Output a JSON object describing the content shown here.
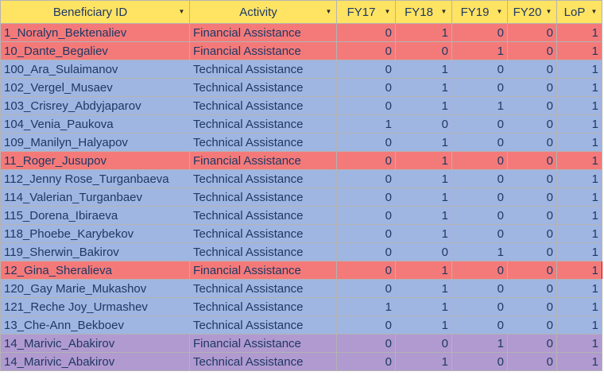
{
  "headers": [
    "Beneficiary ID",
    "Activity",
    "FY17",
    "FY18",
    "FY19",
    "FY20",
    "LoP"
  ],
  "filter_icon": "dropdown-arrow-icon",
  "colors": {
    "header": "#ffe363",
    "financial_row": "#f47a7a",
    "technical_row": "#9fb5e2",
    "duplicate_row": "#b09ad0"
  },
  "rows": [
    {
      "id": "1_Noralyn_Bektenaliev",
      "activity": "Financial Assistance",
      "fy17": "0",
      "fy18": "1",
      "fy19": "0",
      "fy20": "0",
      "lop": "1",
      "style": "fin"
    },
    {
      "id": "10_Dante_Begaliev",
      "activity": "Financial Assistance",
      "fy17": "0",
      "fy18": "0",
      "fy19": "1",
      "fy20": "0",
      "lop": "1",
      "style": "fin"
    },
    {
      "id": "100_Ara_Sulaimanov",
      "activity": "Technical Assistance",
      "fy17": "0",
      "fy18": "1",
      "fy19": "0",
      "fy20": "0",
      "lop": "1",
      "style": "tech"
    },
    {
      "id": "102_Vergel_Musaev",
      "activity": "Technical Assistance",
      "fy17": "0",
      "fy18": "1",
      "fy19": "0",
      "fy20": "0",
      "lop": "1",
      "style": "tech"
    },
    {
      "id": "103_Crisrey_Abdyjaparov",
      "activity": "Technical Assistance",
      "fy17": "0",
      "fy18": "1",
      "fy19": "1",
      "fy20": "0",
      "lop": "1",
      "style": "tech"
    },
    {
      "id": "104_Venia_Paukova",
      "activity": "Technical Assistance",
      "fy17": "1",
      "fy18": "0",
      "fy19": "0",
      "fy20": "0",
      "lop": "1",
      "style": "tech"
    },
    {
      "id": "109_Manilyn_Halyapov",
      "activity": "Technical Assistance",
      "fy17": "0",
      "fy18": "1",
      "fy19": "0",
      "fy20": "0",
      "lop": "1",
      "style": "tech"
    },
    {
      "id": "11_Roger_Jusupov",
      "activity": "Financial Assistance",
      "fy17": "0",
      "fy18": "1",
      "fy19": "0",
      "fy20": "0",
      "lop": "1",
      "style": "fin"
    },
    {
      "id": "112_Jenny Rose_Turganbaeva",
      "activity": "Technical Assistance",
      "fy17": "0",
      "fy18": "1",
      "fy19": "0",
      "fy20": "0",
      "lop": "1",
      "style": "tech"
    },
    {
      "id": "114_Valerian_Turganbaev",
      "activity": "Technical Assistance",
      "fy17": "0",
      "fy18": "1",
      "fy19": "0",
      "fy20": "0",
      "lop": "1",
      "style": "tech"
    },
    {
      "id": "115_Dorena_Ibiraeva",
      "activity": "Technical Assistance",
      "fy17": "0",
      "fy18": "1",
      "fy19": "0",
      "fy20": "0",
      "lop": "1",
      "style": "tech"
    },
    {
      "id": "118_Phoebe_Karybekov",
      "activity": "Technical Assistance",
      "fy17": "0",
      "fy18": "1",
      "fy19": "0",
      "fy20": "0",
      "lop": "1",
      "style": "tech"
    },
    {
      "id": "119_Sherwin_Bakirov",
      "activity": "Technical Assistance",
      "fy17": "0",
      "fy18": "0",
      "fy19": "1",
      "fy20": "0",
      "lop": "1",
      "style": "tech"
    },
    {
      "id": "12_Gina_Sheralieva",
      "activity": "Financial Assistance",
      "fy17": "0",
      "fy18": "1",
      "fy19": "0",
      "fy20": "0",
      "lop": "1",
      "style": "fin sel"
    },
    {
      "id": "120_Gay Marie_Mukashov",
      "activity": "Technical Assistance",
      "fy17": "0",
      "fy18": "1",
      "fy19": "0",
      "fy20": "0",
      "lop": "1",
      "style": "tech"
    },
    {
      "id": "121_Reche Joy_Urmashev",
      "activity": "Technical Assistance",
      "fy17": "1",
      "fy18": "1",
      "fy19": "0",
      "fy20": "0",
      "lop": "1",
      "style": "tech"
    },
    {
      "id": "13_Che-Ann_Bekboev",
      "activity": "Technical Assistance",
      "fy17": "0",
      "fy18": "1",
      "fy19": "0",
      "fy20": "0",
      "lop": "1",
      "style": "tech"
    },
    {
      "id": "14_Marivic_Abakirov",
      "activity": "Financial Assistance",
      "fy17": "0",
      "fy18": "0",
      "fy19": "1",
      "fy20": "0",
      "lop": "1",
      "style": "purp"
    },
    {
      "id": "14_Marivic_Abakirov",
      "activity": "Technical Assistance",
      "fy17": "0",
      "fy18": "1",
      "fy19": "0",
      "fy20": "0",
      "lop": "1",
      "style": "purp"
    }
  ]
}
